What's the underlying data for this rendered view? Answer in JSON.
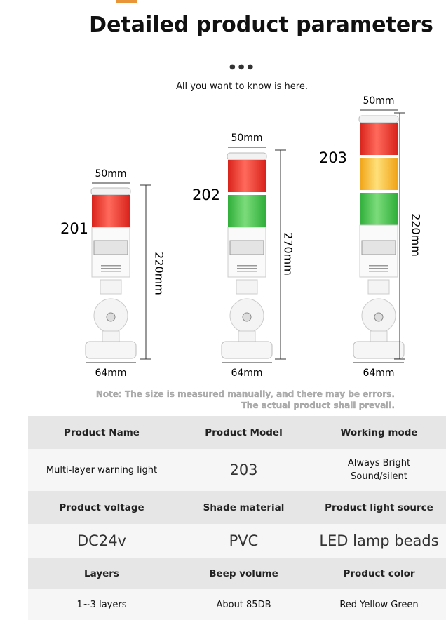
{
  "header": {
    "title": "Detailed product parameters",
    "subtitle": "All you want to know is here."
  },
  "products": [
    {
      "label": "201",
      "width": "50mm",
      "height": "220mm",
      "base": "64mm"
    },
    {
      "label": "202",
      "width": "50mm",
      "height": "270mm",
      "base": "64mm"
    },
    {
      "label": "203",
      "width": "50mm",
      "height": "220mm",
      "base": "64mm"
    }
  ],
  "note": [
    "Note: The size is measured manually, and there may be errors.",
    "The actual product shall prevail."
  ],
  "table": {
    "rows": [
      [
        "Product Name",
        "Product Model",
        "Working mode"
      ],
      [
        "Multi-layer warning light",
        "203",
        [
          "Always Bright",
          "Sound/silent"
        ]
      ],
      [
        "Product voltage",
        "Shade material",
        "Product light source"
      ],
      [
        "DC24v",
        "PVC",
        "LED lamp beads"
      ],
      [
        "Layers",
        "Beep volume",
        "Product color"
      ],
      [
        "1~3 layers",
        "About 85DB",
        "Red Yellow Green"
      ]
    ]
  }
}
